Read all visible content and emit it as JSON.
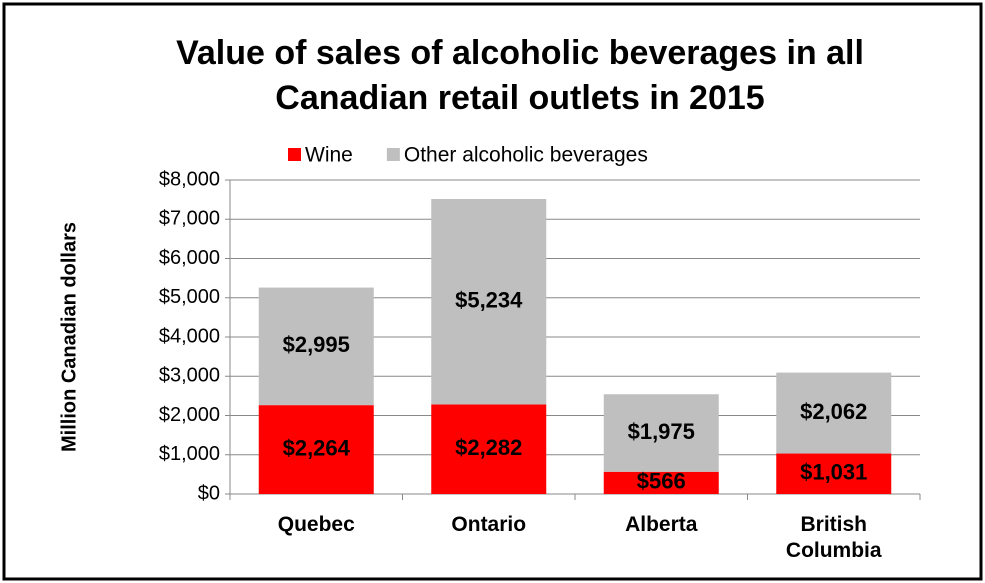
{
  "chart_data": {
    "type": "stacked_bar",
    "title": [
      "Value of sales of alcoholic beverages in all",
      "Canadian retail outlets in 2015"
    ],
    "y_label": "Million Canadian dollars",
    "categories": [
      "Quebec",
      "Ontario",
      "Alberta",
      "British Columbia"
    ],
    "series": [
      {
        "name": "Wine",
        "color": "#ff0000",
        "label_color": "#ffffff",
        "values": [
          2264,
          2282,
          566,
          1031
        ],
        "value_labels": [
          "$2,264",
          "$2,282",
          "$566",
          "$1,031"
        ]
      },
      {
        "name": "Other alcoholic beverages",
        "color": "#bfbfbf",
        "label_color": "#000000",
        "values": [
          2995,
          5234,
          1975,
          2062
        ],
        "value_labels": [
          "$2,995",
          "$5,234",
          "$1,975",
          "$2,062"
        ]
      }
    ],
    "ylim": [
      0,
      8000
    ],
    "yticks": [
      {
        "value": 0,
        "label": "$0"
      },
      {
        "value": 1000,
        "label": "$1,000"
      },
      {
        "value": 2000,
        "label": "$2,000"
      },
      {
        "value": 3000,
        "label": "$3,000"
      },
      {
        "value": 4000,
        "label": "$4,000"
      },
      {
        "value": 5000,
        "label": "$5,000"
      },
      {
        "value": 6000,
        "label": "$6,000"
      },
      {
        "value": 7000,
        "label": "$7,000"
      },
      {
        "value": 8000,
        "label": "$8,000"
      }
    ],
    "grid": true,
    "legend": "top"
  }
}
